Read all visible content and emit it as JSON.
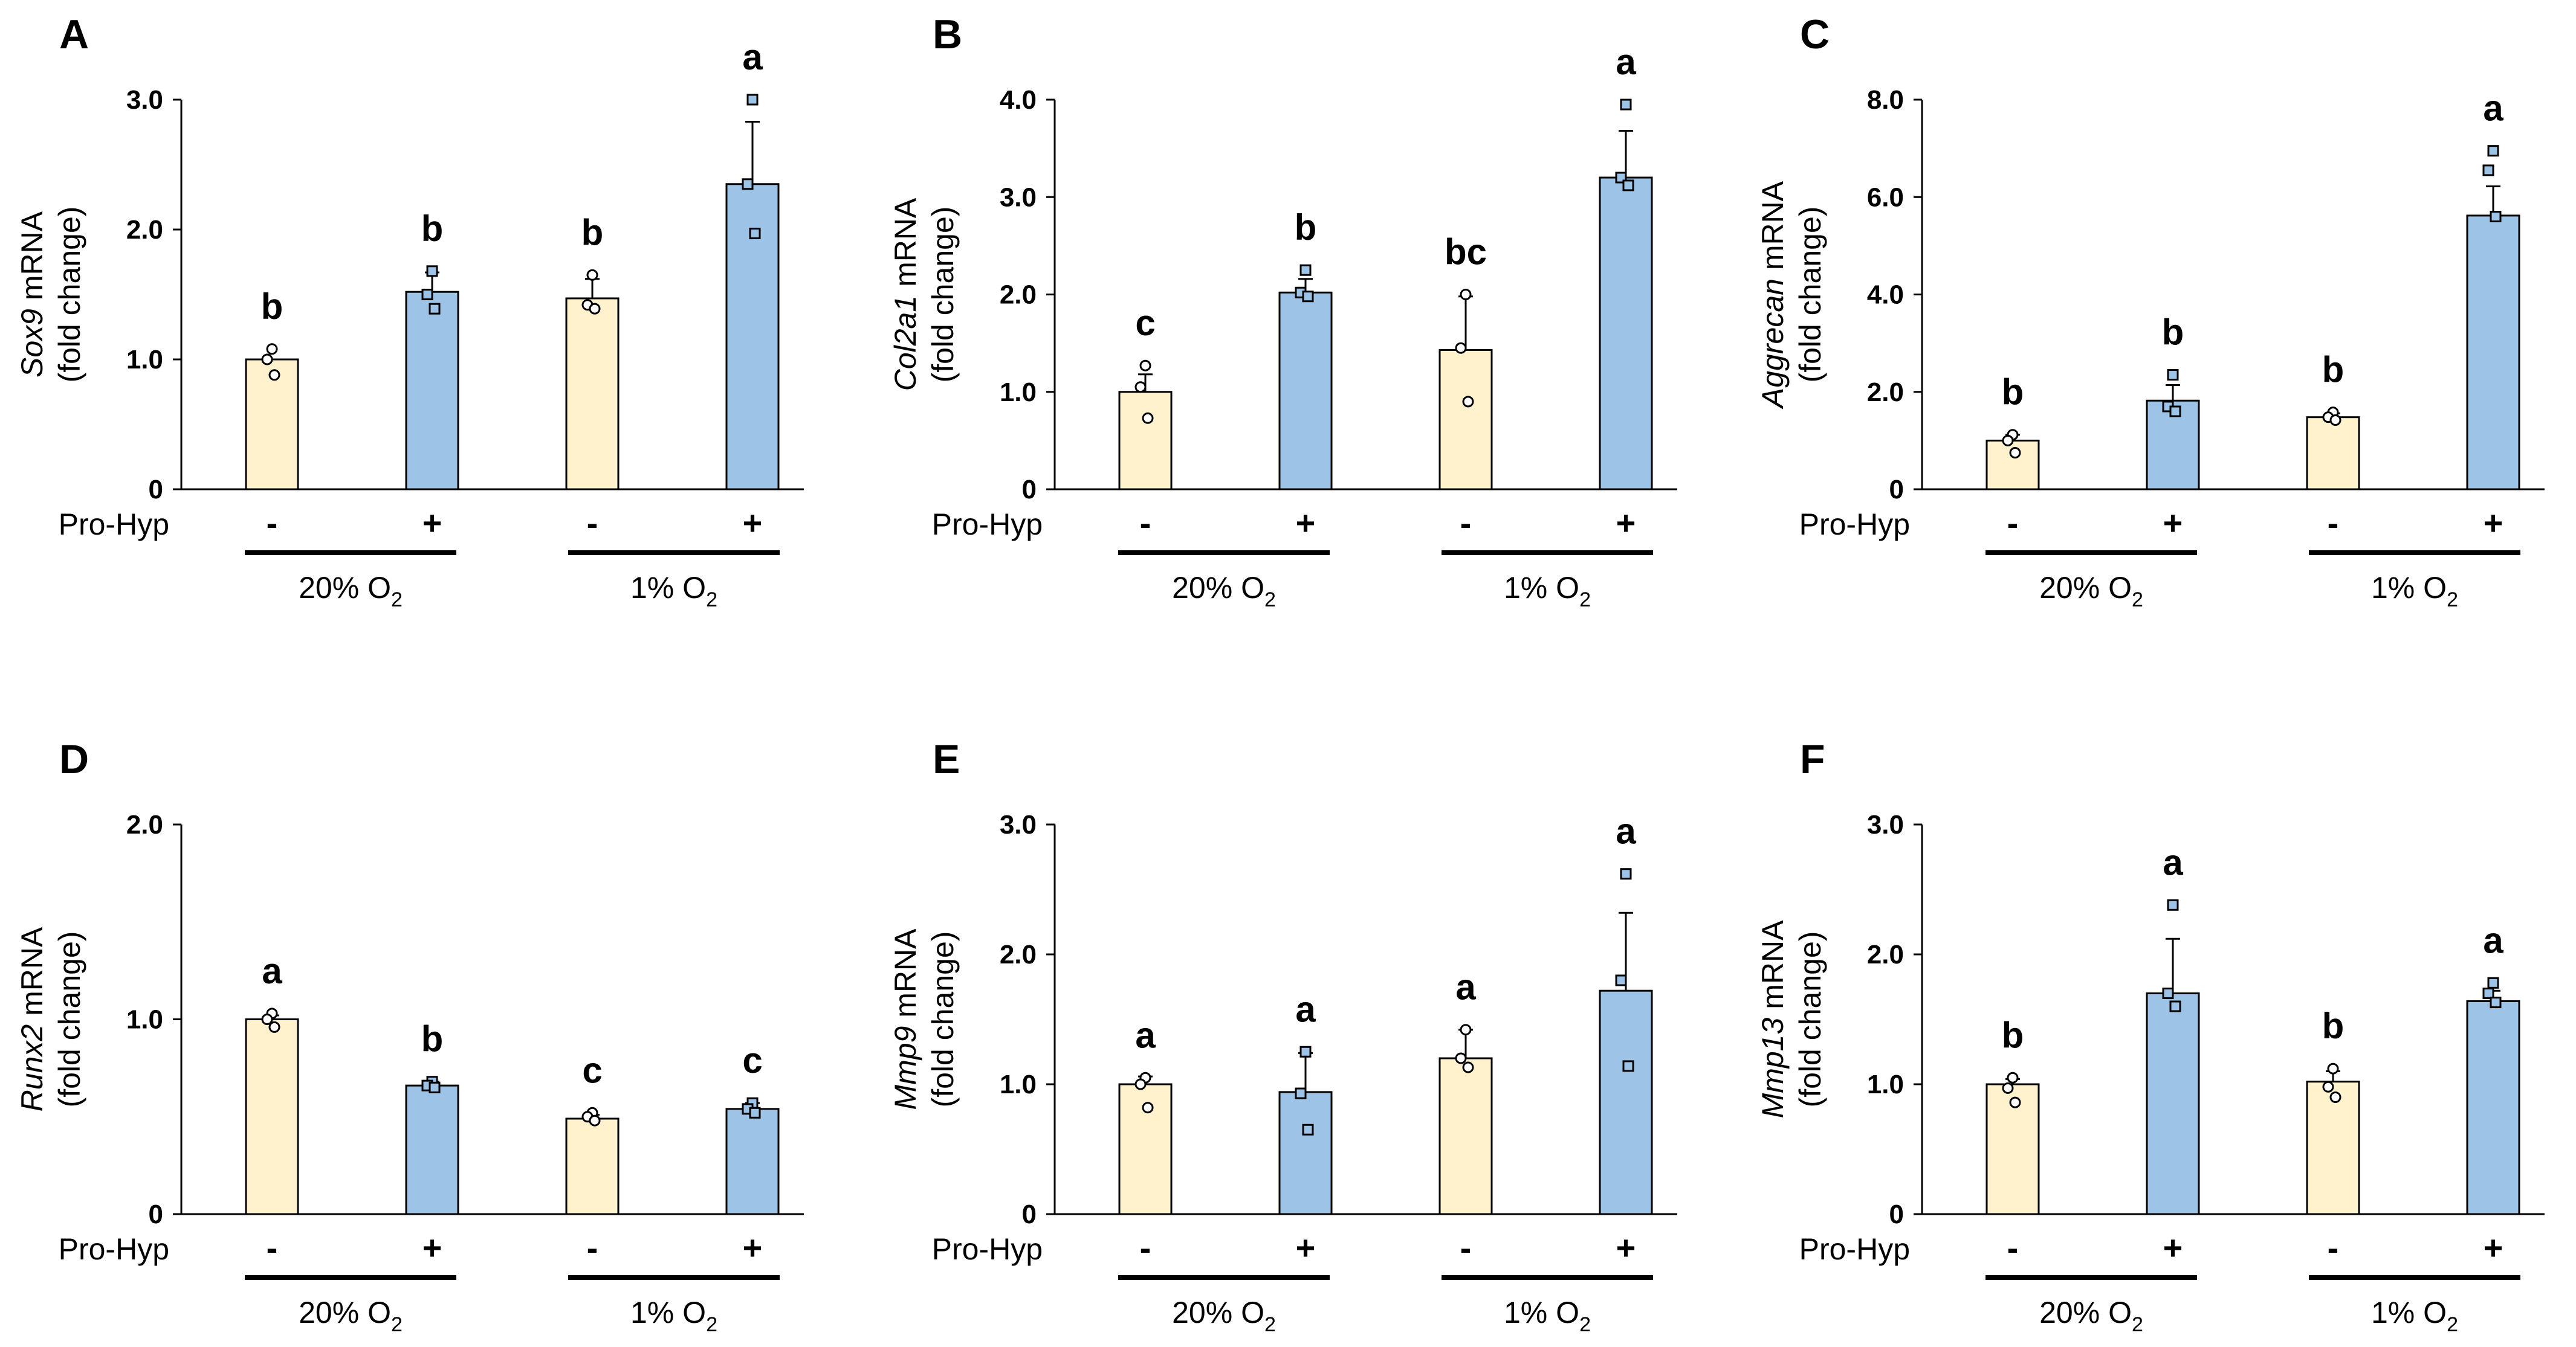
{
  "colors": {
    "control": "#FFF2CC",
    "prohyp": "#9DC3E6",
    "outline": "#000000"
  },
  "row_label": "Pro-Hyp",
  "signs": [
    "-",
    "+",
    "-",
    "+"
  ],
  "groups": [
    {
      "label": "20% O",
      "sub": "2"
    },
    {
      "label": "1% O",
      "sub": "2"
    }
  ],
  "chart_data": [
    {
      "panel": "A",
      "type": "bar",
      "gene": "Sox9",
      "ylabel_suffix": " mRNA",
      "ylabel2": "(fold change)",
      "ylim": [
        0,
        3.0
      ],
      "yticks": [
        0,
        1.0,
        2.0,
        3.0
      ],
      "ytick_labels": [
        "0",
        "1.0",
        "2.0",
        "3.0"
      ],
      "values": [
        1.0,
        1.52,
        1.47,
        2.35
      ],
      "errors": [
        0.0,
        0.15,
        0.15,
        0.48
      ],
      "letters": [
        "b",
        "b",
        "b",
        "a"
      ],
      "points": [
        [
          1.08,
          1.0,
          0.88
        ],
        [
          1.68,
          1.5,
          1.39
        ],
        [
          1.65,
          1.42,
          1.39
        ],
        [
          3.0,
          2.35,
          1.97
        ]
      ]
    },
    {
      "panel": "B",
      "type": "bar",
      "gene": "Col2a1",
      "ylabel_suffix": " mRNA",
      "ylabel2": "(fold change)",
      "ylim": [
        0,
        4.0
      ],
      "yticks": [
        0,
        1.0,
        2.0,
        3.0,
        4.0
      ],
      "ytick_labels": [
        "0",
        "1.0",
        "2.0",
        "3.0",
        "4.0"
      ],
      "values": [
        1.0,
        2.02,
        1.43,
        3.2
      ],
      "errors": [
        0.18,
        0.14,
        0.55,
        0.48
      ],
      "letters": [
        "c",
        "b",
        "bc",
        "a"
      ],
      "points": [
        [
          1.27,
          1.05,
          0.73
        ],
        [
          2.25,
          2.02,
          1.98
        ],
        [
          2.0,
          1.45,
          0.9
        ],
        [
          3.95,
          3.2,
          3.12
        ]
      ]
    },
    {
      "panel": "C",
      "type": "bar",
      "gene": "Aggrecan",
      "ylabel_suffix": " mRNA",
      "ylabel2": "(fold change)",
      "ylim": [
        0,
        8.0
      ],
      "yticks": [
        0,
        2.0,
        4.0,
        6.0,
        8.0
      ],
      "ytick_labels": [
        "0",
        "2.0",
        "4.0",
        "6.0",
        "8.0"
      ],
      "values": [
        1.0,
        1.82,
        1.48,
        5.62
      ],
      "errors": [
        0.12,
        0.32,
        0.08,
        0.6
      ],
      "letters": [
        "b",
        "b",
        "b",
        "a"
      ],
      "points": [
        [
          1.12,
          1.0,
          0.75
        ],
        [
          2.35,
          1.7,
          1.6
        ],
        [
          1.58,
          1.48,
          1.42
        ],
        [
          6.95,
          6.55,
          5.6
        ]
      ]
    },
    {
      "panel": "D",
      "type": "bar",
      "gene": "Runx2",
      "ylabel_suffix": " mRNA",
      "ylabel2": "(fold change)",
      "ylim": [
        0,
        2.0
      ],
      "yticks": [
        0,
        1.0,
        2.0
      ],
      "ytick_labels": [
        "0",
        "1.0",
        "2.0"
      ],
      "values": [
        1.0,
        0.66,
        0.49,
        0.54
      ],
      "errors": [
        0.02,
        0.02,
        0.02,
        0.03
      ],
      "letters": [
        "a",
        "b",
        "c",
        "c"
      ],
      "points": [
        [
          1.03,
          1.0,
          0.96
        ],
        [
          0.68,
          0.66,
          0.65
        ],
        [
          0.52,
          0.5,
          0.48
        ],
        [
          0.57,
          0.54,
          0.52
        ]
      ]
    },
    {
      "panel": "E",
      "type": "bar",
      "gene": "Mmp9",
      "ylabel_suffix": " mRNA",
      "ylabel2": "(fold change)",
      "ylim": [
        0,
        3.0
      ],
      "yticks": [
        0,
        1.0,
        2.0,
        3.0
      ],
      "ytick_labels": [
        "0",
        "1.0",
        "2.0",
        "3.0"
      ],
      "values": [
        1.0,
        0.94,
        1.2,
        1.72
      ],
      "errors": [
        0.06,
        0.3,
        0.22,
        0.6
      ],
      "letters": [
        "a",
        "a",
        "a",
        "a"
      ],
      "points": [
        [
          1.05,
          1.0,
          0.82
        ],
        [
          1.25,
          0.93,
          0.65
        ],
        [
          1.42,
          1.2,
          1.13
        ],
        [
          2.62,
          1.8,
          1.14
        ]
      ]
    },
    {
      "panel": "F",
      "type": "bar",
      "gene": "Mmp13",
      "ylabel_suffix": " mRNA",
      "ylabel2": "(fold change)",
      "ylim": [
        0,
        3.0
      ],
      "yticks": [
        0,
        1.0,
        2.0,
        3.0
      ],
      "ytick_labels": [
        "0",
        "1.0",
        "2.0",
        "3.0"
      ],
      "values": [
        1.0,
        1.7,
        1.02,
        1.64
      ],
      "errors": [
        0.04,
        0.42,
        0.08,
        0.08
      ],
      "letters": [
        "b",
        "a",
        "b",
        "a"
      ],
      "points": [
        [
          1.05,
          0.97,
          0.86
        ],
        [
          2.38,
          1.7,
          1.6
        ],
        [
          1.12,
          0.98,
          0.9
        ],
        [
          1.78,
          1.7,
          1.63
        ]
      ]
    }
  ]
}
